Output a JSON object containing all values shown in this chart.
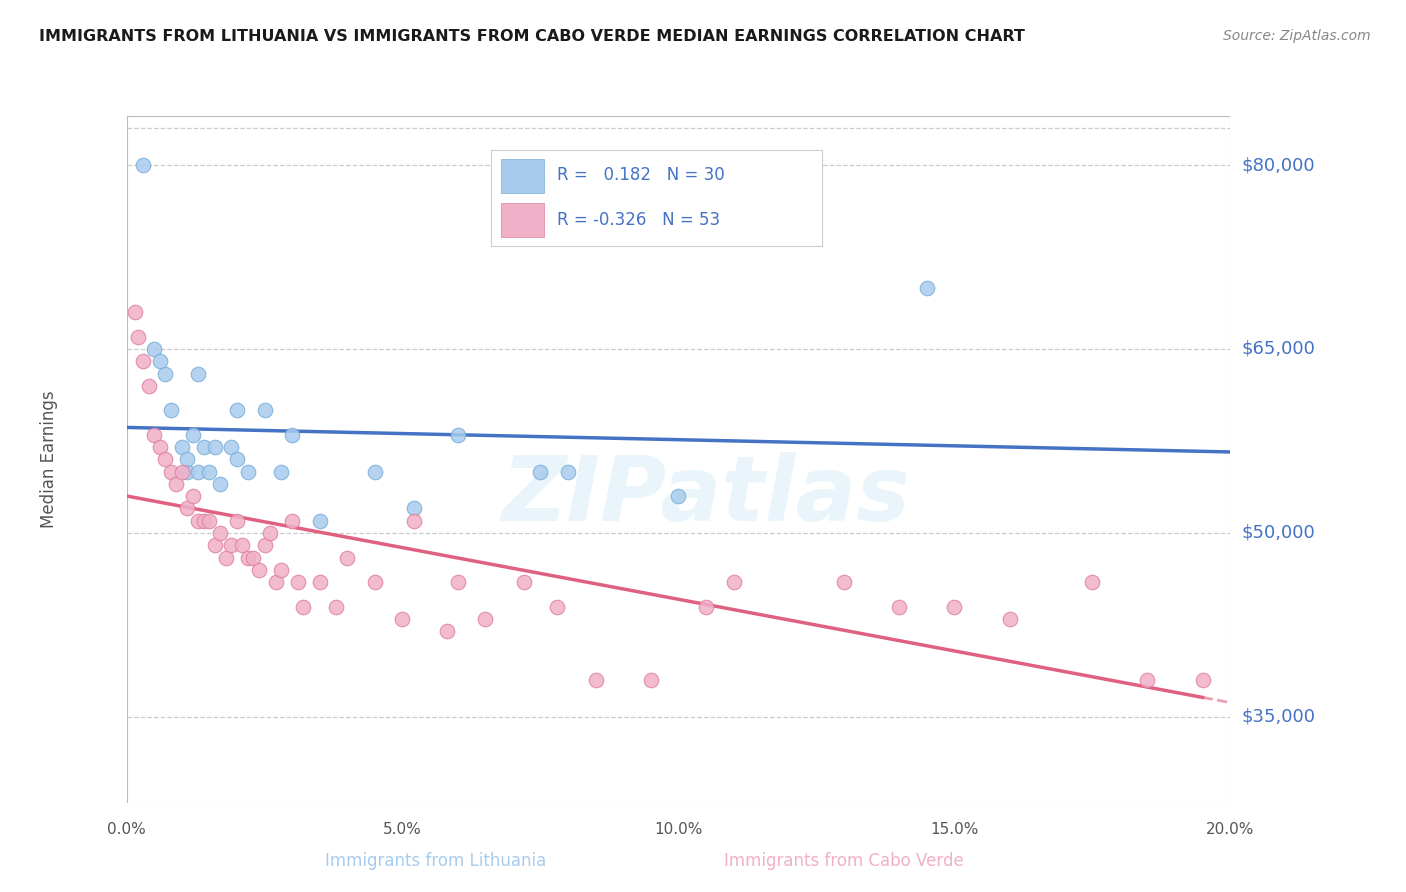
{
  "title": "IMMIGRANTS FROM LITHUANIA VS IMMIGRANTS FROM CABO VERDE MEDIAN EARNINGS CORRELATION CHART",
  "source": "Source: ZipAtlas.com",
  "ylabel": "Median Earnings",
  "ytick_vals": [
    35000,
    50000,
    65000,
    80000
  ],
  "ytick_labels": [
    "$35,000",
    "$50,000",
    "$65,000",
    "$80,000"
  ],
  "xtick_labels": [
    "0.0%",
    "5.0%",
    "10.0%",
    "15.0%",
    "20.0%"
  ],
  "xtick_vals": [
    0.0,
    5.0,
    10.0,
    15.0,
    20.0
  ],
  "xmin": 0.0,
  "xmax": 20.0,
  "ymin": 28000,
  "ymax": 84000,
  "blue_fill": "#a8ccee",
  "blue_edge": "#7aadd8",
  "blue_line_color": "#4472c4",
  "pink_fill": "#f0b0c8",
  "pink_edge": "#e080a0",
  "pink_line_color": "#e06080",
  "text_color_blue": "#4472c4",
  "r_blue": 0.182,
  "n_blue": 30,
  "r_pink": -0.326,
  "n_pink": 53,
  "watermark": "ZIPatlas",
  "legend_label_blue": "Immigrants from Lithuania",
  "legend_label_pink": "Immigrants from Cabo Verde",
  "blue_scatter_x": [
    0.3,
    0.5,
    0.7,
    0.8,
    1.0,
    1.1,
    1.2,
    1.3,
    1.4,
    1.5,
    1.6,
    1.7,
    1.9,
    2.0,
    2.2,
    2.5,
    2.8,
    3.0,
    3.5,
    4.5,
    5.2,
    6.0,
    7.5,
    8.0,
    10.0,
    14.5,
    0.6,
    1.3,
    2.0,
    1.1
  ],
  "blue_scatter_y": [
    80000,
    65000,
    63000,
    60000,
    57000,
    55000,
    58000,
    55000,
    57000,
    55000,
    57000,
    54000,
    57000,
    60000,
    55000,
    60000,
    55000,
    58000,
    51000,
    55000,
    52000,
    58000,
    55000,
    55000,
    53000,
    70000,
    64000,
    63000,
    56000,
    56000
  ],
  "pink_scatter_x": [
    0.15,
    0.2,
    0.3,
    0.4,
    0.5,
    0.6,
    0.7,
    0.8,
    0.9,
    1.0,
    1.1,
    1.2,
    1.3,
    1.4,
    1.5,
    1.6,
    1.7,
    1.8,
    1.9,
    2.0,
    2.1,
    2.2,
    2.3,
    2.4,
    2.5,
    2.6,
    2.7,
    2.8,
    3.0,
    3.1,
    3.2,
    3.5,
    3.8,
    4.0,
    5.0,
    5.2,
    6.0,
    6.5,
    7.2,
    7.8,
    8.5,
    9.5,
    10.5,
    11.0,
    13.0,
    14.0,
    15.0,
    16.0,
    17.5,
    18.5,
    19.5,
    4.5,
    5.8
  ],
  "pink_scatter_y": [
    68000,
    66000,
    64000,
    62000,
    58000,
    57000,
    56000,
    55000,
    54000,
    55000,
    52000,
    53000,
    51000,
    51000,
    51000,
    49000,
    50000,
    48000,
    49000,
    51000,
    49000,
    48000,
    48000,
    47000,
    49000,
    50000,
    46000,
    47000,
    51000,
    46000,
    44000,
    46000,
    44000,
    48000,
    43000,
    51000,
    46000,
    43000,
    46000,
    44000,
    38000,
    38000,
    44000,
    46000,
    46000,
    44000,
    44000,
    43000,
    46000,
    38000,
    38000,
    46000,
    42000
  ]
}
